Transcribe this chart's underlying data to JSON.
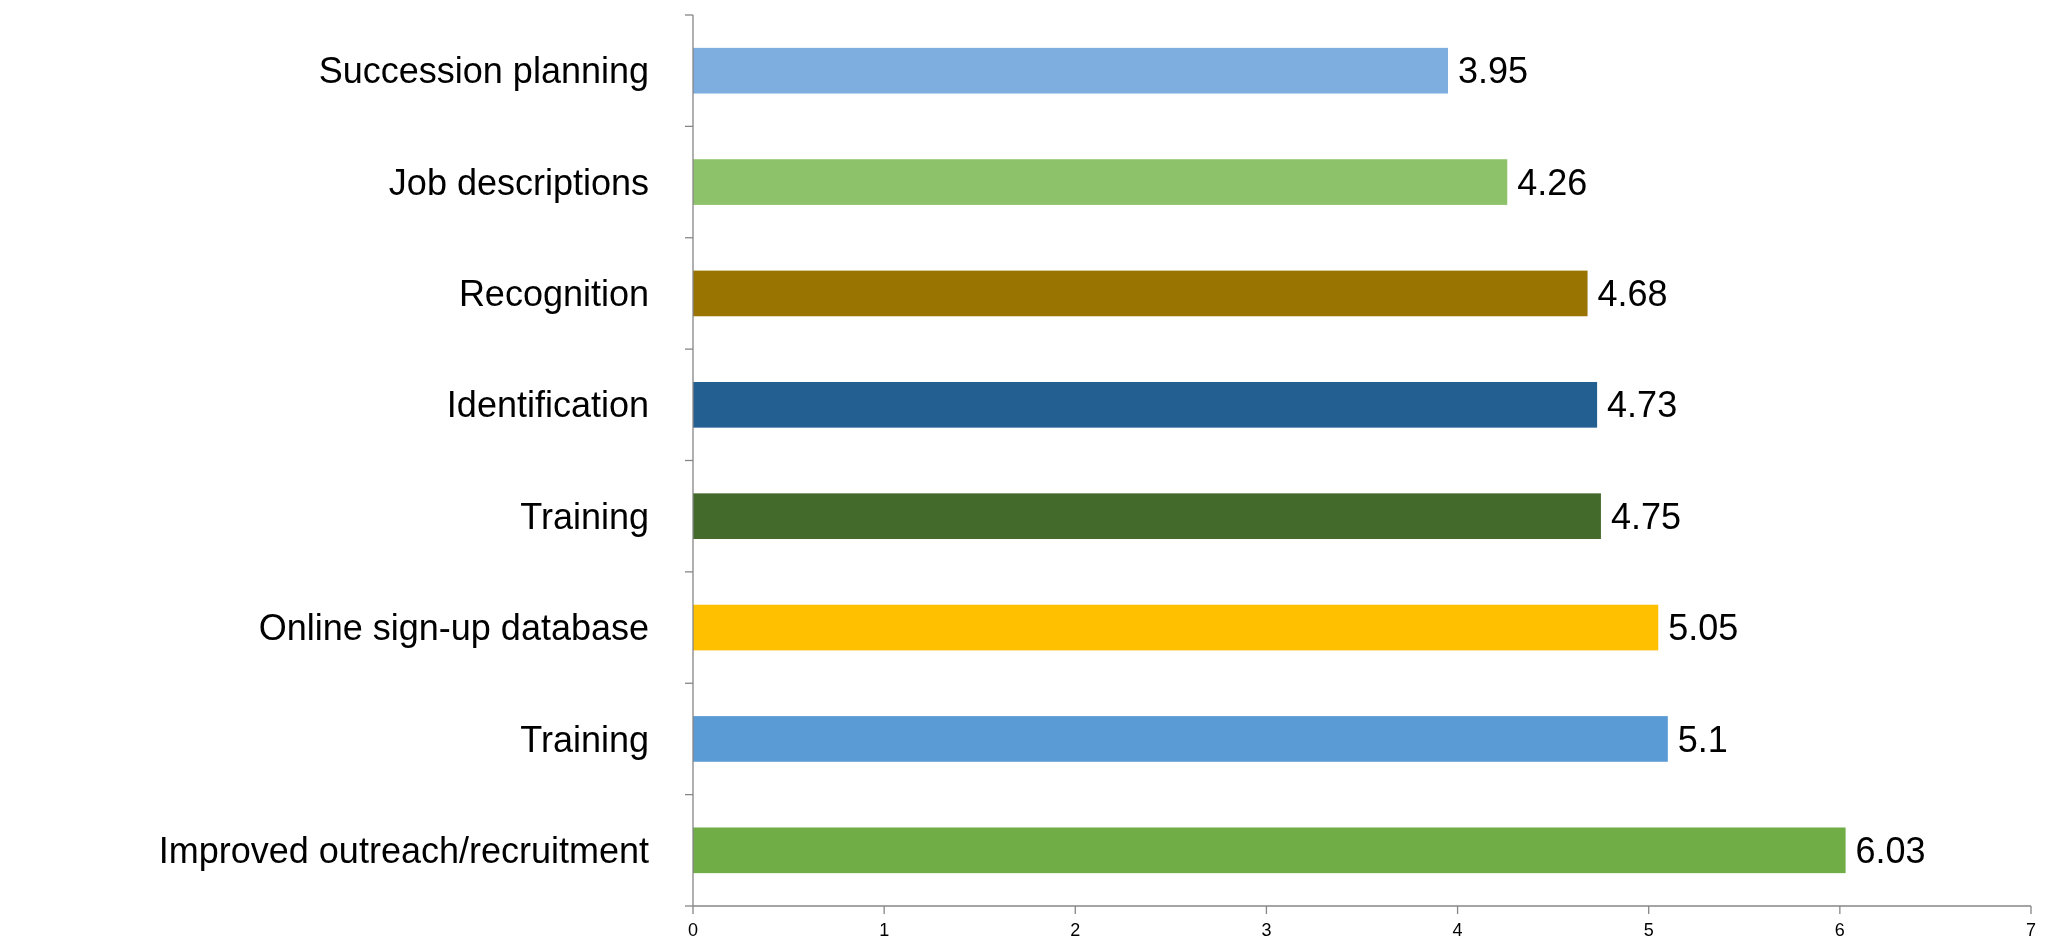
{
  "chart_data": {
    "type": "bar",
    "orientation": "horizontal",
    "categories": [
      "Succession planning",
      "Job descriptions",
      "Recognition",
      "Identification",
      "Training",
      "Online sign-up database",
      "Training",
      "Improved outreach/recruitment"
    ],
    "values": [
      3.95,
      4.26,
      4.68,
      4.73,
      4.75,
      5.05,
      5.1,
      6.03
    ],
    "colors": [
      "#7eaee0",
      "#8dc26a",
      "#9a7400",
      "#245f91",
      "#436a2a",
      "#ffc000",
      "#5b9bd5",
      "#70ad47"
    ],
    "xlim": [
      0,
      7
    ],
    "xticks": [
      0,
      1,
      2,
      3,
      4,
      5,
      6,
      7
    ],
    "data_labels": true
  }
}
